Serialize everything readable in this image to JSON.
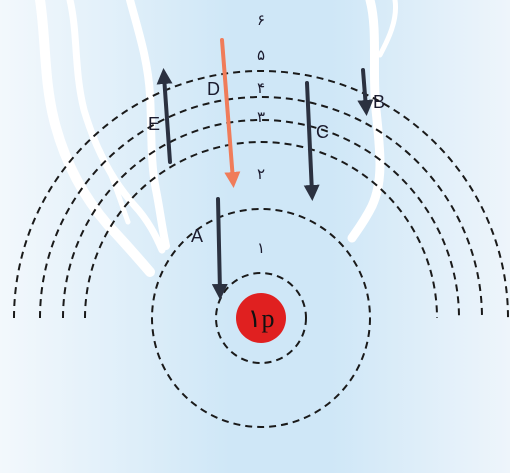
{
  "nucleus": {
    "label": "۱p",
    "color": "#e02020"
  },
  "level_labels": [
    "۱",
    "۲",
    "۳",
    "۴",
    "۵",
    "۶"
  ],
  "transitions": [
    {
      "label": "A",
      "from_level": 2,
      "to_level": 1,
      "direction": "down",
      "color": "#2b3140"
    },
    {
      "label": "B",
      "from_level": 5,
      "to_level": 4,
      "direction": "down",
      "color": "#2b3140"
    },
    {
      "label": "C",
      "from_level": 4,
      "to_level": 2,
      "direction": "down",
      "color": "#2b3140"
    },
    {
      "label": "D",
      "from_level": 6,
      "to_level": 2,
      "direction": "down",
      "color": "#f07c5a"
    },
    {
      "label": "E",
      "from_level": 2,
      "to_level": 5,
      "direction": "up",
      "color": "#2b3140"
    }
  ],
  "colors": {
    "background_center": "#cfe7f7",
    "background_edge": "#f3f8fc",
    "orbit_stroke": "#1a1a1a"
  }
}
